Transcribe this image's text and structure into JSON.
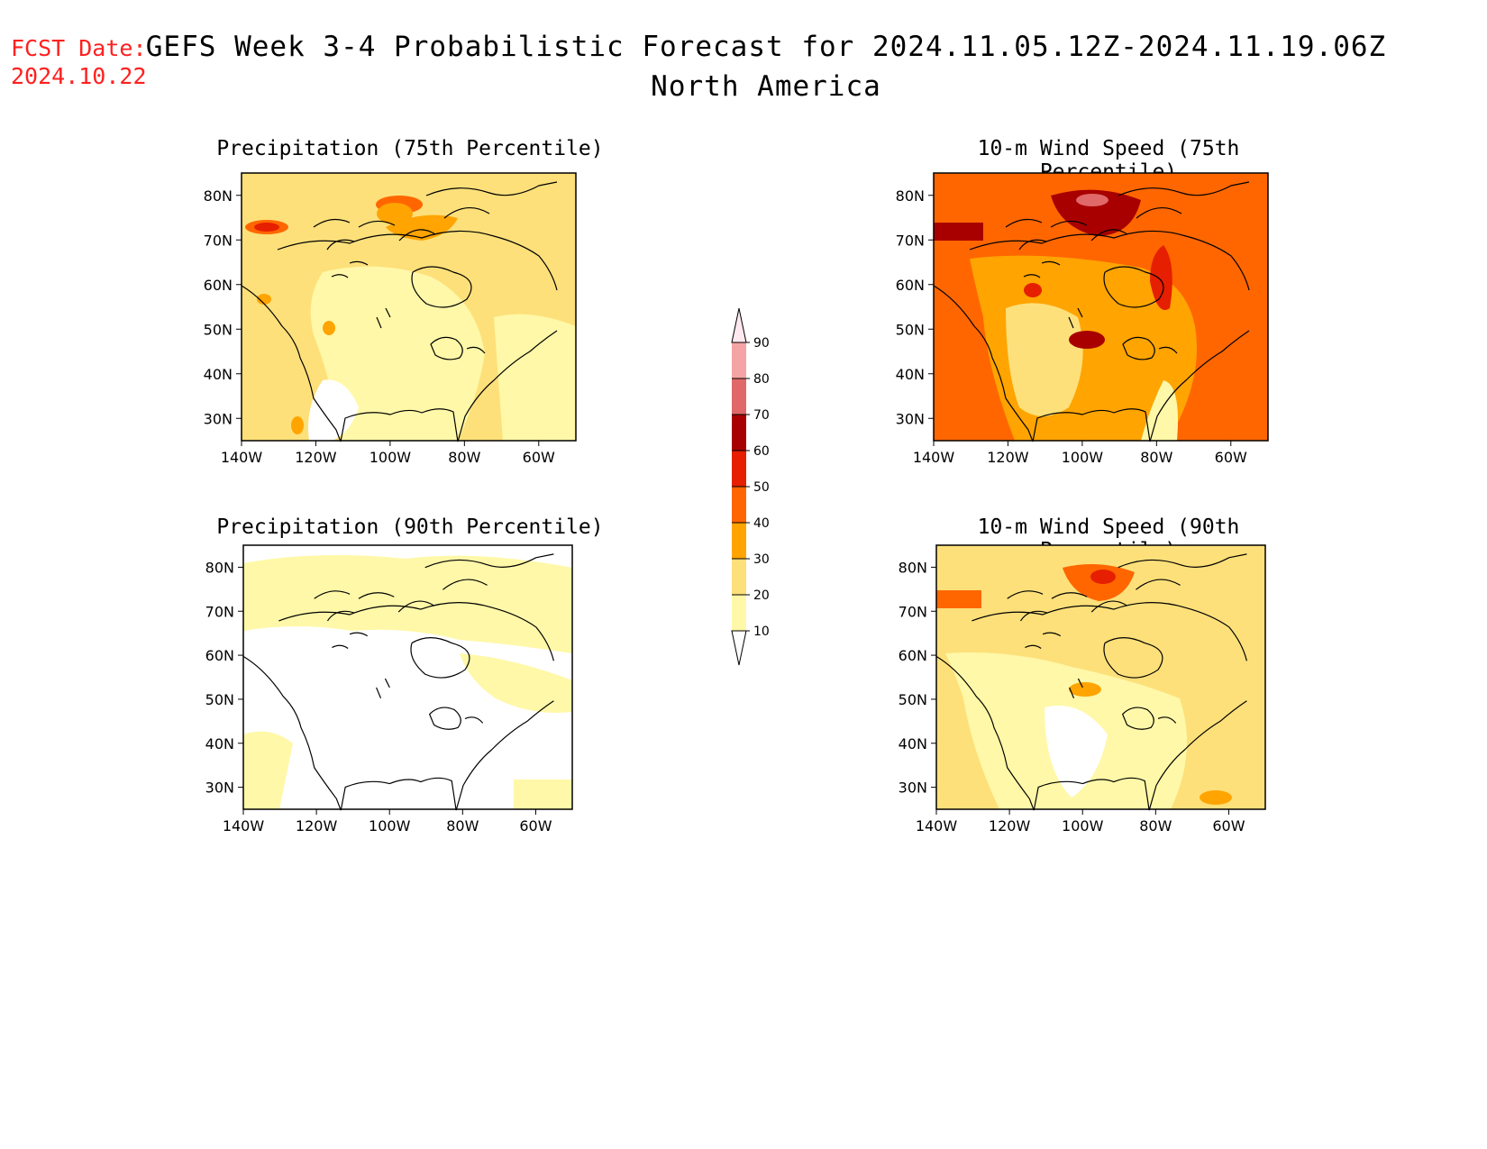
{
  "header": {
    "fcst_label": "FCST Date:",
    "fcst_date": "2024.10.22",
    "title": "GEFS Week 3-4 Probabilistic Forecast for 2024.11.05.12Z-2024.11.19.06Z",
    "region": "North America"
  },
  "panels": [
    {
      "title": "Precipitation (75th Percentile)"
    },
    {
      "title": "10-m Wind Speed (75th Percentile)"
    },
    {
      "title": "Precipitation (90th Percentile)"
    },
    {
      "title": "10-m Wind Speed (90th Percentile)"
    }
  ],
  "axes": {
    "lon_ticks": [
      "140W",
      "120W",
      "100W",
      "80W",
      "60W"
    ],
    "lat_ticks": [
      "80N",
      "70N",
      "60N",
      "50N",
      "40N",
      "30N"
    ]
  },
  "colorbar": {
    "levels": [
      "10",
      "20",
      "30",
      "40",
      "50",
      "60",
      "70",
      "80",
      "90"
    ],
    "colors": [
      "#fff8a8",
      "#fde07a",
      "#ffa400",
      "#ff6600",
      "#e51f00",
      "#a80000",
      "#e06868",
      "#f4a4a4",
      "#ffe8ee"
    ]
  }
}
